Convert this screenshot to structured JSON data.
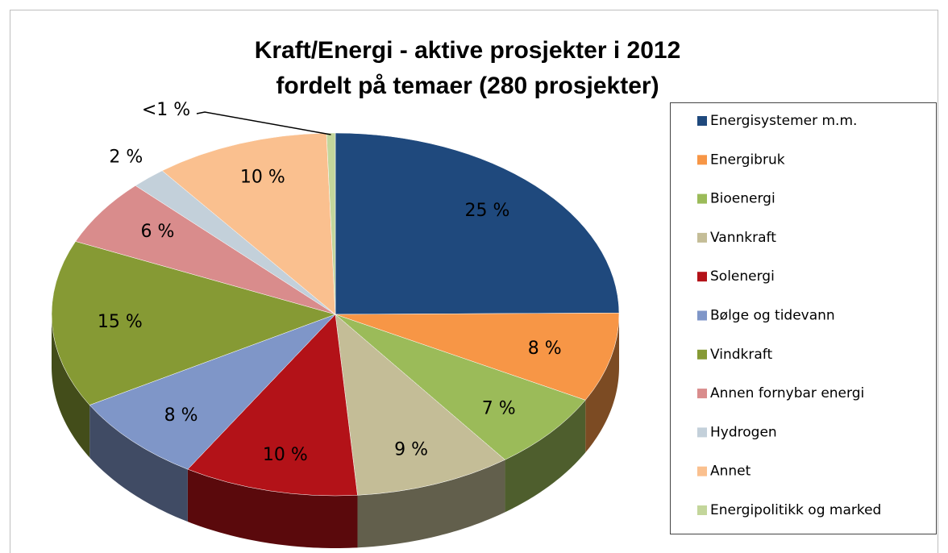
{
  "chart_data": {
    "type": "pie",
    "title": [
      "Kraft/Energi - aktive prosjekter i 2012",
      "fordelt på temaer (280 prosjekter)"
    ],
    "categories": [
      "Energisystemer m.m.",
      "Energibruk",
      "Bioenergi",
      "Vannkraft",
      "Solenergi",
      "Bølge og tidevann",
      "Vindkraft",
      "Annen fornybar energi",
      "Hydrogen",
      "Annet",
      "Energipolitikk og marked"
    ],
    "values": [
      25,
      8,
      7,
      9,
      10,
      8,
      15,
      6,
      2,
      10,
      0.5
    ],
    "value_labels": [
      "25 %",
      "8 %",
      "7 %",
      "9 %",
      "10 %",
      "8 %",
      "15 %",
      "6 %",
      "2 %",
      "10 %",
      "<1 %"
    ],
    "colors": [
      "#1f497d",
      "#f79646",
      "#9bbb59",
      "#c4bd97",
      "#b31218",
      "#7f96c8",
      "#869a34",
      "#d98c8c",
      "#c3d0da",
      "#fac08f",
      "#c3d69b"
    ],
    "legend": "right"
  }
}
